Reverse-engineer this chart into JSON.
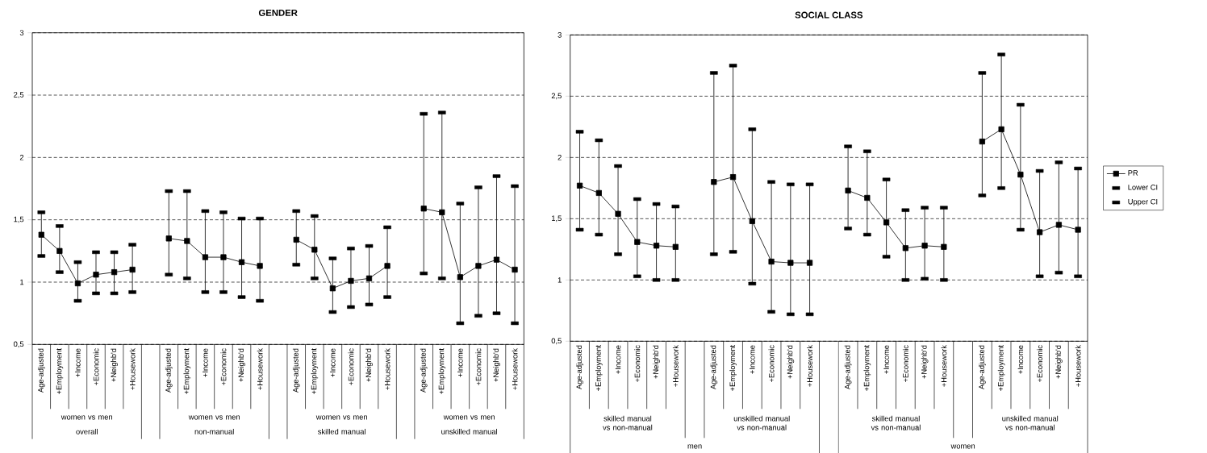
{
  "chart_data": [
    {
      "type": "line",
      "title": "GENDER",
      "categories": [
        "Age-adjusted",
        "+Employment",
        "+Income",
        "+Economic",
        "+Neighb'd",
        "+Housework",
        null,
        "Age-adjusted",
        "+Employment",
        "+Income",
        "+Economic",
        "+Neighb'd",
        "+Housework",
        null,
        "Age-adjusted",
        "+Employment",
        "+Income",
        "+Economic",
        "+Neighb'd",
        "+Housework",
        null,
        "Age-adjusted",
        "+Employment",
        "+Income",
        "+Economic",
        "+Neighb'd",
        "+Housework"
      ],
      "annotations": [
        "women vs men",
        "women vs men",
        "women vs men",
        "women vs men",
        "overall",
        "non-manual",
        "skilled manual",
        "unskilled manual"
      ],
      "series": [
        {
          "marker": "square",
          "color": "#000000",
          "values": [
            1.38,
            1.25,
            0.99,
            1.06,
            1.08,
            1.1,
            null,
            1.35,
            1.33,
            1.2,
            1.2,
            1.16,
            1.13,
            null,
            1.34,
            1.26,
            0.95,
            1.01,
            1.03,
            1.13,
            null,
            1.59,
            1.56,
            1.04,
            1.13,
            1.18,
            1.1
          ],
          "errors": [
            [
              1.21,
              1.56
            ],
            [
              1.08,
              1.45
            ],
            [
              0.85,
              1.16
            ],
            [
              0.91,
              1.24
            ],
            [
              0.91,
              1.24
            ],
            [
              0.92,
              1.3
            ],
            null,
            [
              1.06,
              1.73
            ],
            [
              1.03,
              1.73
            ],
            [
              0.92,
              1.57
            ],
            [
              0.92,
              1.56
            ],
            [
              0.88,
              1.51
            ],
            [
              0.85,
              1.51
            ],
            null,
            [
              1.14,
              1.57
            ],
            [
              1.03,
              1.53
            ],
            [
              0.76,
              1.19
            ],
            [
              0.8,
              1.27
            ],
            [
              0.82,
              1.29
            ],
            [
              0.88,
              1.44
            ],
            null,
            [
              1.07,
              2.35
            ],
            [
              1.03,
              2.36
            ],
            [
              0.67,
              1.63
            ],
            [
              0.73,
              1.76
            ],
            [
              0.75,
              1.85
            ],
            [
              0.67,
              1.77
            ]
          ]
        },
        {
          "type": "scatter",
          "color": "#000000",
          "values": [
            1.21,
            1.08,
            0.85,
            0.91,
            0.91,
            0.92,
            null,
            1.06,
            1.03,
            0.92,
            0.92,
            0.88,
            0.85,
            null,
            1.14,
            1.03,
            0.76,
            0.8,
            0.82,
            0.88,
            null,
            1.07,
            1.03,
            0.67,
            0.73,
            0.75,
            0.67
          ]
        },
        {
          "type": "scatter",
          "color": "#000000",
          "values": [
            1.56,
            1.45,
            1.16,
            1.24,
            1.24,
            1.3,
            null,
            1.73,
            1.73,
            1.57,
            1.56,
            1.51,
            1.51,
            null,
            1.57,
            1.53,
            1.19,
            1.27,
            1.29,
            1.44,
            null,
            2.35,
            2.36,
            1.63,
            1.76,
            1.85,
            1.77
          ]
        }
      ],
      "ylim": [
        0.5,
        3
      ],
      "yticks": [
        {
          "value": 0.5,
          "label": "0,5"
        },
        1,
        {
          "value": 1.5,
          "label": "1,5"
        },
        2,
        {
          "value": 2.5,
          "label": "2,5"
        },
        3
      ],
      "grid": "y",
      "line_style": "solid"
    },
    {
      "type": "line",
      "title": "SOCIAL CLASS",
      "categories": [
        "Age-adjusted",
        "+Employment",
        "+Income",
        "+Economic",
        "+Neighb'd",
        "+Housework",
        null,
        "Age-adjusted",
        "+Employment",
        "+Income",
        "+Economic",
        "+Neighb'd",
        "+Housework",
        null,
        "Age-adjusted",
        "+Employment",
        "+Income",
        "+Economic",
        "+Neighb'd",
        "+Housework",
        null,
        "Age-adjusted",
        "+Employment",
        "+Income",
        "+Economic",
        "+Neighb'd",
        "+Housework"
      ],
      "annotations": [
        "skilled manual vs non-manual",
        "unskilled manual vs non-manual",
        "skilled manual vs non-manual",
        "unskilled manual vs non-manual",
        "men",
        "women"
      ],
      "series": [
        {
          "name": "PR",
          "marker": "square",
          "color": "#000000",
          "values": [
            1.77,
            1.71,
            1.54,
            1.31,
            1.28,
            1.27,
            null,
            1.8,
            1.84,
            1.48,
            1.15,
            1.14,
            1.14,
            null,
            1.73,
            1.67,
            1.47,
            1.26,
            1.28,
            1.27,
            null,
            2.13,
            2.23,
            1.86,
            1.39,
            1.45,
            1.41
          ],
          "errors": [
            [
              1.41,
              2.21
            ],
            [
              1.37,
              2.14
            ],
            [
              1.21,
              1.93
            ],
            [
              1.03,
              1.66
            ],
            [
              1.0,
              1.62
            ],
            [
              1.0,
              1.6
            ],
            null,
            [
              1.21,
              2.69
            ],
            [
              1.23,
              2.75
            ],
            [
              0.97,
              2.23
            ],
            [
              0.74,
              1.8
            ],
            [
              0.72,
              1.78
            ],
            [
              0.72,
              1.78
            ],
            null,
            [
              1.42,
              2.09
            ],
            [
              1.37,
              2.05
            ],
            [
              1.19,
              1.82
            ],
            [
              1.0,
              1.57
            ],
            [
              1.01,
              1.59
            ],
            [
              1.0,
              1.59
            ],
            null,
            [
              1.69,
              2.69
            ],
            [
              1.75,
              2.84
            ],
            [
              1.41,
              2.43
            ],
            [
              1.03,
              1.89
            ],
            [
              1.06,
              1.96
            ],
            [
              1.03,
              1.91
            ]
          ]
        },
        {
          "name": "Lower CI",
          "type": "scatter",
          "color": "#000000",
          "values": [
            1.41,
            1.37,
            1.21,
            1.03,
            1.0,
            1.0,
            null,
            1.21,
            1.23,
            0.97,
            0.74,
            0.72,
            0.72,
            null,
            1.42,
            1.37,
            1.19,
            1.0,
            1.01,
            1.0,
            null,
            1.69,
            1.75,
            1.41,
            1.03,
            1.06,
            1.03
          ]
        },
        {
          "name": "Upper CI",
          "type": "scatter",
          "color": "#000000",
          "values": [
            2.21,
            2.14,
            1.93,
            1.66,
            1.62,
            1.6,
            null,
            2.69,
            2.75,
            2.23,
            1.8,
            1.78,
            1.78,
            null,
            2.09,
            2.05,
            1.82,
            1.57,
            1.59,
            1.59,
            null,
            2.69,
            2.84,
            2.43,
            1.89,
            1.96,
            1.91
          ]
        }
      ],
      "ylim": [
        0.5,
        3
      ],
      "yticks": [
        {
          "value": 0.5,
          "label": "0,5"
        },
        1,
        {
          "value": 1.5,
          "label": "1,5"
        },
        2,
        {
          "value": 2.5,
          "label": "2,5"
        },
        3
      ],
      "grid": "y",
      "legend": "right",
      "line_style": "solid"
    }
  ]
}
